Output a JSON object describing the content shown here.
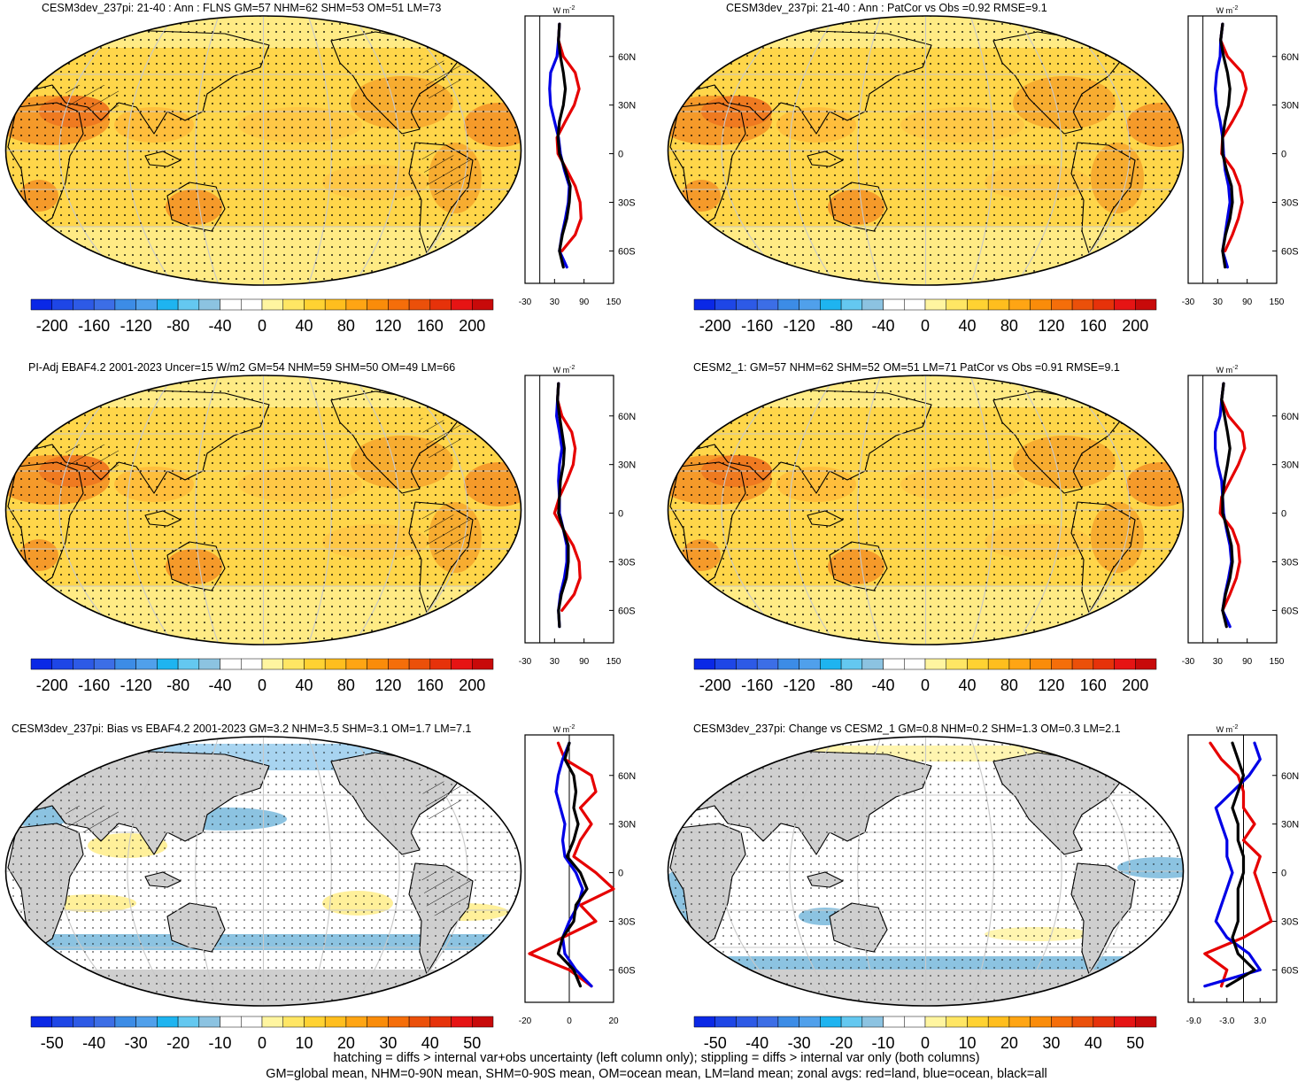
{
  "panels": [
    {
      "id": "p1",
      "title": "CESM3dev_237pi: 21-40 : Ann : FLNS GM=57 NHM=62 SHM=53 OM=51 LM=73",
      "map_style": "full",
      "hatched": true,
      "colorbar": "full",
      "zonal_unit": "W m",
      "zonal_unit_sup": "-2",
      "zonal_xticks": [
        "-30",
        "30",
        "90",
        "150"
      ]
    },
    {
      "id": "p2",
      "title": "CESM3dev_237pi: 21-40 : Ann : PatCor vs Obs =0.92 RMSE=9.1",
      "map_style": "full",
      "hatched": false,
      "colorbar": "full",
      "zonal_unit": "W m",
      "zonal_unit_sup": "-2",
      "zonal_xticks": [
        "-30",
        "30",
        "90",
        "150"
      ]
    },
    {
      "id": "p3",
      "title": "PI-Adj EBAF4.2 2001-2023 Uncer=15 W/m2 GM=54 NHM=59 SHM=50 OM=49 LM=66",
      "map_style": "full",
      "hatched": true,
      "colorbar": "full",
      "zonal_unit": "W m",
      "zonal_unit_sup": "-2",
      "zonal_xticks": [
        "-30",
        "30",
        "90",
        "150"
      ]
    },
    {
      "id": "p4",
      "title": "CESM2_1: GM=57 NHM=62 SHM=52 OM=51 LM=71 PatCor vs Obs =0.91 RMSE=9.1",
      "map_style": "full",
      "hatched": false,
      "colorbar": "full",
      "zonal_unit": "W m",
      "zonal_unit_sup": "-2",
      "zonal_xticks": [
        "-30",
        "30",
        "90",
        "150"
      ]
    },
    {
      "id": "p5",
      "title": "CESM3dev_237pi: Bias vs EBAF4.2 2001-2023 GM=3.2 NHM=3.5 SHM=3.1 OM=1.7 LM=7.1",
      "map_style": "bias",
      "hatched": true,
      "colorbar": "diff",
      "zonal_unit": "W m",
      "zonal_unit_sup": "-2",
      "zonal_xticks": [
        "-20",
        "0",
        "20"
      ]
    },
    {
      "id": "p6",
      "title": "CESM3dev_237pi: Change vs CESM2_1 GM=0.8 NHM=0.2 SHM=1.3 OM=0.3 LM=2.1",
      "map_style": "change",
      "hatched": false,
      "colorbar": "diff",
      "zonal_unit": "W m",
      "zonal_unit_sup": "-2",
      "zonal_xticks": [
        "-9.0",
        "-3.0",
        "3.0"
      ]
    }
  ],
  "zonal_yticks": [
    "60N",
    "30N",
    "0",
    "30S",
    "60S"
  ],
  "colorbars": {
    "full": {
      "labels": [
        "-200",
        "-160",
        "-120",
        "-80",
        "-40",
        "0",
        "40",
        "80",
        "120",
        "160",
        "200"
      ],
      "colors": [
        "#0a28e6",
        "#1e46e6",
        "#2d5ae6",
        "#3c6ee6",
        "#3c8ce6",
        "#50a0eb",
        "#1eb4f0",
        "#64c8f0",
        "#8cc3e1",
        "#ffffff",
        "#ffffff",
        "#fff5a0",
        "#ffe664",
        "#ffd232",
        "#ffbe1e",
        "#ffa514",
        "#fa8c0a",
        "#f56e0a",
        "#eb500a",
        "#e6320a",
        "#e61414",
        "#c80a0a"
      ]
    },
    "diff": {
      "labels": [
        "-50",
        "-40",
        "-30",
        "-20",
        "-10",
        "0",
        "10",
        "20",
        "30",
        "40",
        "50"
      ],
      "colors": [
        "#0a28e6",
        "#1e46e6",
        "#2d5ae6",
        "#3c6ee6",
        "#3c8ce6",
        "#50a0eb",
        "#1eb4f0",
        "#64c8f0",
        "#8cc3e1",
        "#ffffff",
        "#ffffff",
        "#fff5a0",
        "#ffe664",
        "#ffd232",
        "#ffbe1e",
        "#ffa514",
        "#fa8c0a",
        "#f56e0a",
        "#eb500a",
        "#e6320a",
        "#e61414",
        "#c80a0a"
      ]
    }
  },
  "chart_data": [
    {
      "type": "line",
      "title": "CESM3dev_237pi: 21-40 : Ann : FLNS GM=57 NHM=62 SHM=53 OM=51 LM=73",
      "xlabel": "W m-2",
      "xlim": [
        -30,
        150
      ],
      "ylim": [
        -80,
        85
      ],
      "y": [
        80,
        70,
        60,
        50,
        40,
        30,
        20,
        10,
        0,
        -10,
        -20,
        -30,
        -40,
        -50,
        -60,
        -70
      ],
      "series": [
        {
          "name": "land",
          "color": "#e60000",
          "values": [
            40,
            38,
            48,
            72,
            80,
            70,
            52,
            35,
            37,
            55,
            72,
            82,
            84,
            72,
            45,
            null
          ]
        },
        {
          "name": "ocean",
          "color": "#0000e6",
          "values": [
            40,
            38,
            35,
            22,
            20,
            22,
            30,
            38,
            42,
            50,
            60,
            58,
            52,
            45,
            40,
            55
          ]
        },
        {
          "name": "all",
          "color": "#000000",
          "values": [
            40,
            38,
            42,
            48,
            52,
            48,
            40,
            37,
            40,
            52,
            62,
            60,
            55,
            46,
            40,
            48
          ]
        }
      ]
    },
    {
      "type": "line",
      "title": "CESM3dev_237pi: 21-40 : Ann : PatCor vs Obs =0.92 RMSE=9.1",
      "xlabel": "W m-2",
      "xlim": [
        -30,
        150
      ],
      "ylim": [
        -80,
        85
      ],
      "y": [
        80,
        70,
        60,
        50,
        40,
        30,
        20,
        10,
        0,
        -10,
        -20,
        -30,
        -40,
        -50,
        -60,
        -70
      ],
      "series": [
        {
          "name": "land",
          "color": "#e60000",
          "values": [
            40,
            36,
            50,
            80,
            88,
            78,
            60,
            40,
            38,
            62,
            75,
            80,
            72,
            60,
            45,
            null
          ]
        },
        {
          "name": "ocean",
          "color": "#0000e6",
          "values": [
            40,
            36,
            35,
            28,
            25,
            28,
            35,
            40,
            42,
            45,
            52,
            55,
            50,
            45,
            40,
            50
          ]
        },
        {
          "name": "all",
          "color": "#000000",
          "values": [
            40,
            36,
            42,
            50,
            55,
            52,
            45,
            40,
            40,
            48,
            58,
            60,
            55,
            46,
            40,
            45
          ]
        }
      ]
    },
    {
      "type": "line",
      "title": "PI-Adj EBAF4.2 2001-2023 Uncer=15 W/m2 GM=54 NHM=59 SHM=50 OM=49 LM=66",
      "xlabel": "W m-2",
      "xlim": [
        -30,
        150
      ],
      "ylim": [
        -80,
        85
      ],
      "y": [
        80,
        70,
        60,
        50,
        40,
        30,
        20,
        10,
        0,
        -10,
        -20,
        -30,
        -40,
        -50,
        -60,
        -70
      ],
      "series": [
        {
          "name": "land",
          "color": "#e60000",
          "values": [
            38,
            36,
            45,
            65,
            72,
            68,
            55,
            40,
            30,
            48,
            68,
            80,
            82,
            70,
            45,
            null
          ]
        },
        {
          "name": "ocean",
          "color": "#0000e6",
          "values": [
            38,
            36,
            34,
            40,
            45,
            40,
            38,
            40,
            40,
            48,
            55,
            55,
            50,
            42,
            38,
            40
          ]
        },
        {
          "name": "all",
          "color": "#000000",
          "values": [
            38,
            36,
            40,
            45,
            50,
            48,
            42,
            40,
            38,
            48,
            58,
            58,
            54,
            44,
            38,
            40
          ]
        }
      ]
    },
    {
      "type": "line",
      "title": "CESM2_1: GM=57 NHM=62 SHM=52 OM=51 LM=71 PatCor vs Obs =0.91 RMSE=9.1",
      "xlabel": "W m-2",
      "xlim": [
        -30,
        150
      ],
      "ylim": [
        -80,
        85
      ],
      "y": [
        80,
        70,
        60,
        50,
        40,
        30,
        20,
        10,
        0,
        -10,
        -20,
        -30,
        -40,
        -50,
        -60,
        -70
      ],
      "series": [
        {
          "name": "land",
          "color": "#e60000",
          "values": [
            42,
            38,
            52,
            80,
            85,
            72,
            55,
            38,
            35,
            60,
            72,
            75,
            68,
            55,
            40,
            null
          ]
        },
        {
          "name": "ocean",
          "color": "#0000e6",
          "values": [
            42,
            38,
            35,
            25,
            25,
            30,
            38,
            40,
            42,
            48,
            55,
            58,
            52,
            45,
            40,
            55
          ]
        },
        {
          "name": "all",
          "color": "#000000",
          "values": [
            42,
            38,
            44,
            50,
            55,
            50,
            44,
            40,
            40,
            50,
            58,
            60,
            55,
            46,
            40,
            48
          ]
        }
      ]
    },
    {
      "type": "line",
      "title": "CESM3dev_237pi: Bias vs EBAF4.2 2001-2023 GM=3.2 NHM=3.5 SHM=3.1 OM=1.7 LM=7.1",
      "xlabel": "W m-2",
      "xlim": [
        -20,
        20
      ],
      "ylim": [
        -80,
        85
      ],
      "y": [
        80,
        70,
        60,
        50,
        40,
        30,
        20,
        10,
        0,
        -10,
        -20,
        -30,
        -40,
        -50,
        -60,
        -70
      ],
      "series": [
        {
          "name": "land",
          "color": "#e60000",
          "values": [
            -5,
            -2,
            10,
            12,
            5,
            10,
            5,
            2,
            12,
            20,
            5,
            12,
            -3,
            -18,
            0,
            10
          ]
        },
        {
          "name": "ocean",
          "color": "#0000e6",
          "values": [
            0,
            -3,
            -5,
            -6,
            -4,
            -2,
            -3,
            -2,
            3,
            6,
            4,
            0,
            -3,
            -2,
            3,
            10
          ]
        },
        {
          "name": "all",
          "color": "#000000",
          "values": [
            0,
            -2,
            2,
            3,
            2,
            4,
            2,
            -1,
            5,
            8,
            3,
            2,
            -3,
            -5,
            2,
            5
          ]
        }
      ]
    },
    {
      "type": "line",
      "title": "CESM3dev_237pi: Change vs CESM2_1 GM=0.8 NHM=0.2 SHM=1.3 OM=0.3 LM=2.1",
      "xlabel": "W m-2",
      "xlim": [
        -10,
        6
      ],
      "ylim": [
        -80,
        85
      ],
      "y": [
        80,
        70,
        60,
        50,
        40,
        30,
        20,
        10,
        0,
        -10,
        -20,
        -30,
        -40,
        -50,
        -60,
        -70
      ],
      "series": [
        {
          "name": "land",
          "color": "#e60000",
          "values": [
            -6,
            -4,
            -1,
            0,
            0,
            2,
            0,
            3,
            2,
            3,
            4,
            5,
            0,
            -7,
            -3,
            -4
          ]
        },
        {
          "name": "ocean",
          "color": "#0000e6",
          "values": [
            2,
            3,
            1,
            -2,
            -5,
            -4,
            -3,
            -3,
            -2,
            -3,
            -4,
            -5,
            -3,
            1,
            3,
            -7
          ]
        },
        {
          "name": "all",
          "color": "#000000",
          "values": [
            -2,
            -1,
            0,
            -1,
            -2,
            -1,
            -1,
            0,
            0,
            -1,
            -1,
            -1,
            -2,
            -1,
            2,
            -3
          ]
        }
      ]
    }
  ],
  "footer": {
    "line1": "hatching = diffs > internal var+obs uncertainty (left column only); stippling = diffs > internal var only (both columns)",
    "line2": "GM=global mean, NHM=0-90N mean, SHM=0-90S mean, OM=ocean mean, LM=land mean; zonal avgs: red=land, blue=ocean, black=all"
  }
}
